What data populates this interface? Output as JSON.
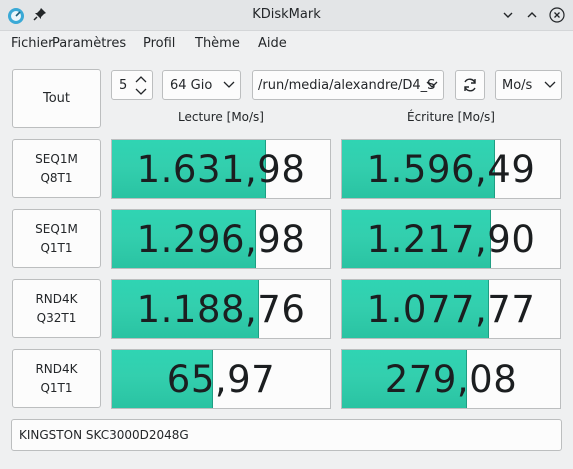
{
  "window": {
    "title": "KDiskMark"
  },
  "menu": [
    "Fichier",
    "Paramètres",
    "Profil",
    "Thème",
    "Aide"
  ],
  "toolbar": {
    "all_label": "Tout",
    "runs": "5",
    "size": "64 Gio",
    "path": "/run/media/alexandre/D4_S",
    "unit": "Mo/s"
  },
  "headers": {
    "read": "Lecture [Mo/s]",
    "write": "Écriture [Mo/s]"
  },
  "tests": [
    {
      "label": "SEQ1M\nQ8T1",
      "read": "1.631,98",
      "write": "1.596,49",
      "read_fill": 0.704,
      "write_fill": 0.696
    },
    {
      "label": "SEQ1M\nQ1T1",
      "read": "1.296,98",
      "write": "1.217,90",
      "read_fill": 0.656,
      "write_fill": 0.678
    },
    {
      "label": "RND4K\nQ32T1",
      "read": "1.188,76",
      "write": "1.077,77",
      "read_fill": 0.67,
      "write_fill": 0.67
    },
    {
      "label": "RND4K\nQ1T1",
      "read": "65,97",
      "write": "279,08",
      "read_fill": 0.46,
      "write_fill": 0.57
    }
  ],
  "device": "KINGSTON SKC3000D2048G",
  "colors": {
    "bar_fill": "#33cfae",
    "bar_border": "#1f9e83",
    "window_bg": "#eff0f1"
  }
}
